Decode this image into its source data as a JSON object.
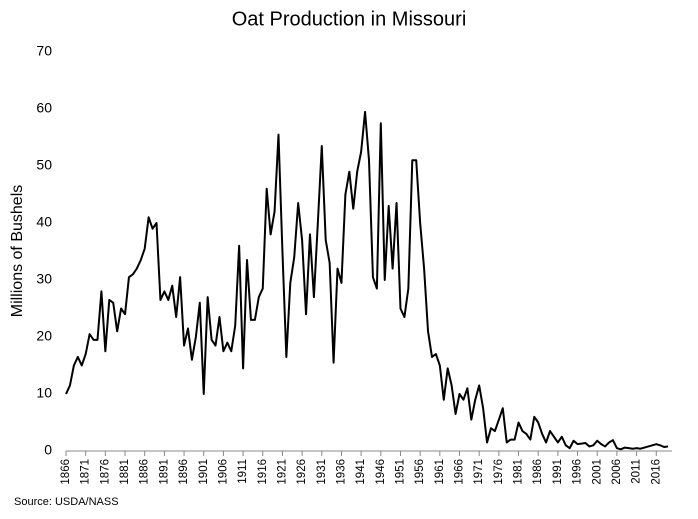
{
  "chart_data": {
    "type": "line",
    "title": "Oat Production in Missouri",
    "y_label": "Millions of Bushels",
    "source": "Source: USDA/NASS",
    "color": "#000000",
    "x": [
      1866,
      1867,
      1868,
      1869,
      1870,
      1871,
      1872,
      1873,
      1874,
      1875,
      1876,
      1877,
      1878,
      1879,
      1880,
      1881,
      1882,
      1883,
      1884,
      1885,
      1886,
      1887,
      1888,
      1889,
      1890,
      1891,
      1892,
      1893,
      1894,
      1895,
      1896,
      1897,
      1898,
      1899,
      1900,
      1901,
      1902,
      1903,
      1904,
      1905,
      1906,
      1907,
      1908,
      1909,
      1910,
      1911,
      1912,
      1913,
      1914,
      1915,
      1916,
      1917,
      1918,
      1919,
      1920,
      1921,
      1922,
      1923,
      1924,
      1925,
      1926,
      1927,
      1928,
      1929,
      1930,
      1931,
      1932,
      1933,
      1934,
      1935,
      1936,
      1937,
      1938,
      1939,
      1940,
      1941,
      1942,
      1943,
      1944,
      1945,
      1946,
      1947,
      1948,
      1949,
      1950,
      1951,
      1952,
      1953,
      1954,
      1955,
      1956,
      1957,
      1958,
      1959,
      1960,
      1961,
      1962,
      1963,
      1964,
      1965,
      1966,
      1967,
      1968,
      1969,
      1970,
      1971,
      1972,
      1973,
      1974,
      1975,
      1976,
      1977,
      1978,
      1979,
      1980,
      1981,
      1982,
      1983,
      1984,
      1985,
      1986,
      1987,
      1988,
      1989,
      1990,
      1991,
      1992,
      1993,
      1994,
      1995,
      1996,
      1997,
      1998,
      1999,
      2000,
      2001,
      2002,
      2003,
      2004,
      2005,
      2006,
      2007,
      2008,
      2009,
      2010,
      2011,
      2012,
      2013,
      2014,
      2015,
      2016,
      2017,
      2018,
      2019
    ],
    "values": [
      10,
      11.5,
      15,
      16.5,
      15,
      17,
      20.5,
      19.5,
      19.5,
      28,
      17.5,
      26.5,
      26,
      21,
      25,
      24,
      30.5,
      31,
      32,
      33.5,
      35.5,
      41,
      39,
      40,
      26.5,
      28,
      26.5,
      29,
      23.5,
      30.5,
      18.5,
      21.5,
      16,
      20,
      26,
      10,
      27,
      19.5,
      18.5,
      23.5,
      17.5,
      19,
      17.5,
      22,
      36,
      14.5,
      33.5,
      23,
      23,
      27,
      28.5,
      46,
      38,
      42,
      55.5,
      35,
      16.5,
      29.5,
      34,
      43.5,
      37,
      24,
      38,
      27,
      40,
      53.5,
      37,
      33,
      15.5,
      32,
      29.5,
      45,
      49,
      42.5,
      49,
      52.5,
      59.5,
      51,
      30.5,
      28.5,
      57.5,
      30,
      43,
      32,
      43.5,
      25,
      23.5,
      28.5,
      51,
      51,
      40,
      32,
      21,
      16.5,
      17,
      15,
      9,
      14.5,
      11.5,
      6.5,
      10,
      9,
      11,
      5.5,
      9,
      11.5,
      7.5,
      1.5,
      4,
      3.5,
      5.5,
      7.5,
      1.5,
      2,
      2,
      5,
      3.5,
      3,
      2,
      6,
      5,
      3,
      1.5,
      3.5,
      2.5,
      1.5,
      2.5,
      1,
      0.5,
      1.8,
      1.2,
      1.3,
      1.4,
      0.8,
      1,
      1.8,
      1.2,
      0.8,
      1.5,
      1.9,
      0.5,
      0.3,
      0.6,
      0.5,
      0.4,
      0.5,
      0.4,
      0.6,
      0.8,
      1,
      1.2,
      1,
      0.7,
      0.8
    ],
    "xlim": [
      1866,
      2020
    ],
    "xticks": [
      1866,
      1871,
      1876,
      1881,
      1886,
      1891,
      1896,
      1901,
      1906,
      1911,
      1916,
      1921,
      1926,
      1931,
      1936,
      1941,
      1946,
      1951,
      1956,
      1961,
      1966,
      1971,
      1976,
      1981,
      1986,
      1991,
      1996,
      2001,
      2006,
      2011,
      2016
    ],
    "ylim": [
      0,
      70
    ],
    "yticks": [
      0,
      10,
      20,
      30,
      40,
      50,
      60,
      70
    ],
    "grid": false
  }
}
